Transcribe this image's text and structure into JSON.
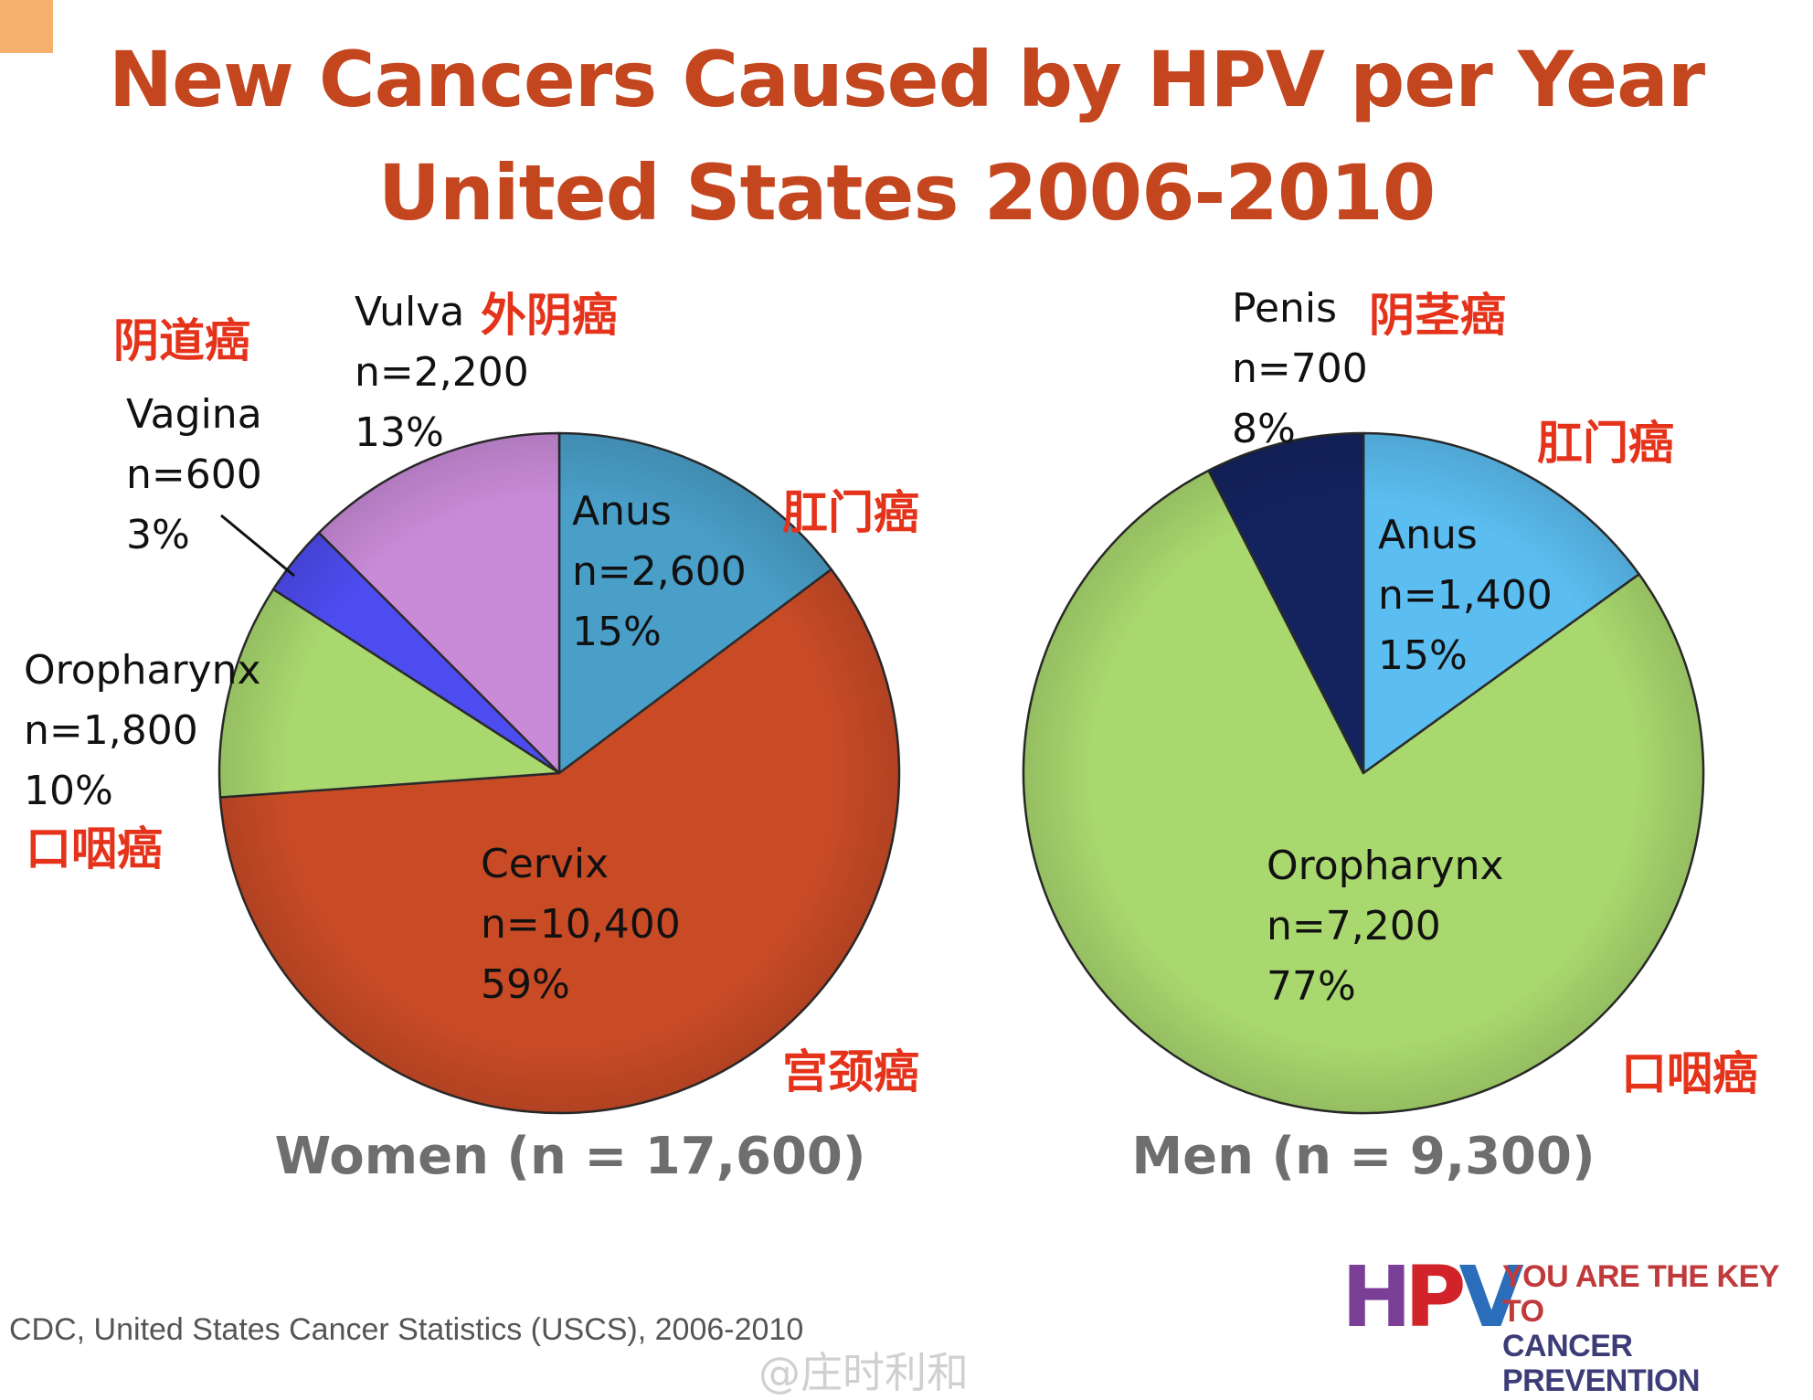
{
  "title_line1": "New Cancers Caused by HPV per Year",
  "title_line2": "United States 2006-2010",
  "source": "CDC, United States Cancer Statistics (USCS), 2006-2010",
  "watermark": "@庄时利和",
  "logo": {
    "mark": "HPV",
    "tagline_line1": "YOU ARE THE KEY TO",
    "tagline_line2": "CANCER PREVENTION",
    "colors": [
      "#7b3f98",
      "#d2232a",
      "#2a6ebb"
    ]
  },
  "chart_data": [
    {
      "type": "pie",
      "caption": "Women (n = 17,600)",
      "slices": [
        {
          "label": "Anus",
          "n_text": "n=2,600",
          "pct_text": "15%",
          "value": 2600,
          "color": "#4a9fc9",
          "zh": "肛门癌"
        },
        {
          "label": "Cervix",
          "n_text": "n=10,400",
          "pct_text": "59%",
          "value": 10400,
          "color": "#c94b26",
          "zh": "宫颈癌"
        },
        {
          "label": "Oropharynx",
          "n_text": "n=1,800",
          "pct_text": "10%",
          "value": 1800,
          "color": "#a9d86e",
          "zh": "口咽癌"
        },
        {
          "label": "Vagina",
          "n_text": "n=600",
          "pct_text": "3%",
          "value": 600,
          "color": "#4d4cf0",
          "zh": "阴道癌"
        },
        {
          "label": "Vulva",
          "n_text": "n=2,200",
          "pct_text": "13%",
          "value": 2200,
          "color": "#c98bd8",
          "zh": "外阴癌"
        }
      ]
    },
    {
      "type": "pie",
      "caption": "Men (n = 9,300)",
      "slices": [
        {
          "label": "Anus",
          "n_text": "n=1,400",
          "pct_text": "15%",
          "value": 1400,
          "color": "#5bbdf0",
          "zh": "肛门癌"
        },
        {
          "label": "Oropharynx",
          "n_text": "n=7,200",
          "pct_text": "77%",
          "value": 7200,
          "color": "#a9d86e",
          "zh": "口咽癌"
        },
        {
          "label": "Penis",
          "n_text": "n=700",
          "pct_text": "8%",
          "value": 700,
          "color": "#13235e",
          "zh": "阴茎癌"
        }
      ]
    }
  ]
}
